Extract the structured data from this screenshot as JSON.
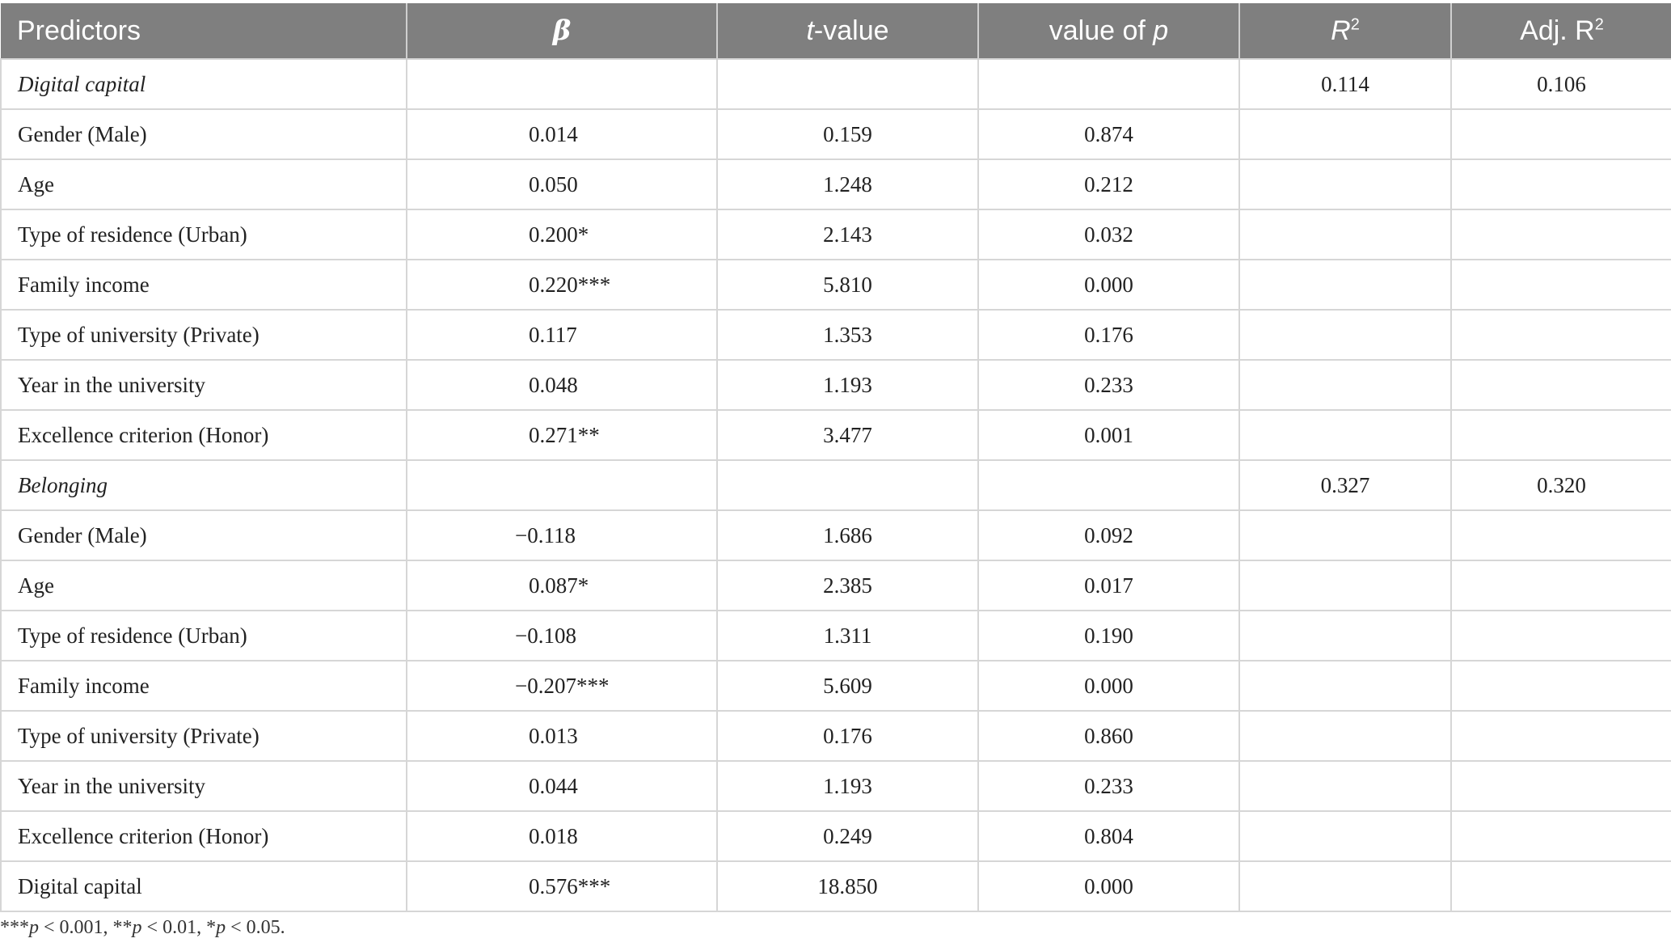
{
  "headers": {
    "predictors": "Predictors",
    "beta": "β",
    "t_prefix": "t",
    "t_suffix": "-value",
    "p_prefix": "value of ",
    "p_var": "p",
    "r2_base": "R",
    "r2_sup": "2",
    "adj_base": "Adj. R",
    "adj_sup": "2"
  },
  "sections": [
    {
      "label": "Digital capital",
      "r2": "0.114",
      "adj_r2": "0.106",
      "rows": [
        {
          "predictor": "Gender (Male)",
          "beta": "0.014",
          "t": "0.159",
          "p": "0.874"
        },
        {
          "predictor": "Age",
          "beta": "0.050",
          "t": "1.248",
          "p": "0.212"
        },
        {
          "predictor": "Type of residence (Urban)",
          "beta": "0.200*",
          "t": "2.143",
          "p": "0.032"
        },
        {
          "predictor": "Family income",
          "beta": "0.220***",
          "t": "5.810",
          "p": "0.000"
        },
        {
          "predictor": "Type of university (Private)",
          "beta": "0.117",
          "t": "1.353",
          "p": "0.176"
        },
        {
          "predictor": "Year in the university",
          "beta": "0.048",
          "t": "1.193",
          "p": "0.233"
        },
        {
          "predictor": "Excellence criterion (Honor)",
          "beta": "0.271**",
          "t": "3.477",
          "p": "0.001"
        }
      ]
    },
    {
      "label": "Belonging",
      "r2": "0.327",
      "adj_r2": "0.320",
      "rows": [
        {
          "predictor": "Gender (Male)",
          "beta": "−0.118",
          "t": "1.686",
          "p": "0.092"
        },
        {
          "predictor": "Age",
          "beta": "0.087*",
          "t": "2.385",
          "p": "0.017"
        },
        {
          "predictor": "Type of residence (Urban)",
          "beta": "−0.108",
          "t": "1.311",
          "p": "0.190"
        },
        {
          "predictor": "Family income",
          "beta": "−0.207***",
          "t": "5.609",
          "p": "0.000"
        },
        {
          "predictor": "Type of university (Private)",
          "beta": "0.013",
          "t": "0.176",
          "p": "0.860"
        },
        {
          "predictor": "Year in the university",
          "beta": "0.044",
          "t": "1.193",
          "p": "0.233"
        },
        {
          "predictor": "Excellence criterion (Honor)",
          "beta": "0.018",
          "t": "0.249",
          "p": "0.804"
        },
        {
          "predictor": "Digital capital",
          "beta": "0.576***",
          "t": "18.850",
          "p": "0.000"
        }
      ]
    }
  ],
  "footnote": {
    "parts": [
      {
        "text": "***",
        "italic": false
      },
      {
        "text": "p",
        "italic": true
      },
      {
        "text": " < 0.001, **",
        "italic": false
      },
      {
        "text": "p",
        "italic": true
      },
      {
        "text": " < 0.01, *",
        "italic": false
      },
      {
        "text": "p",
        "italic": true
      },
      {
        "text": " < 0.05.",
        "italic": false
      }
    ]
  }
}
